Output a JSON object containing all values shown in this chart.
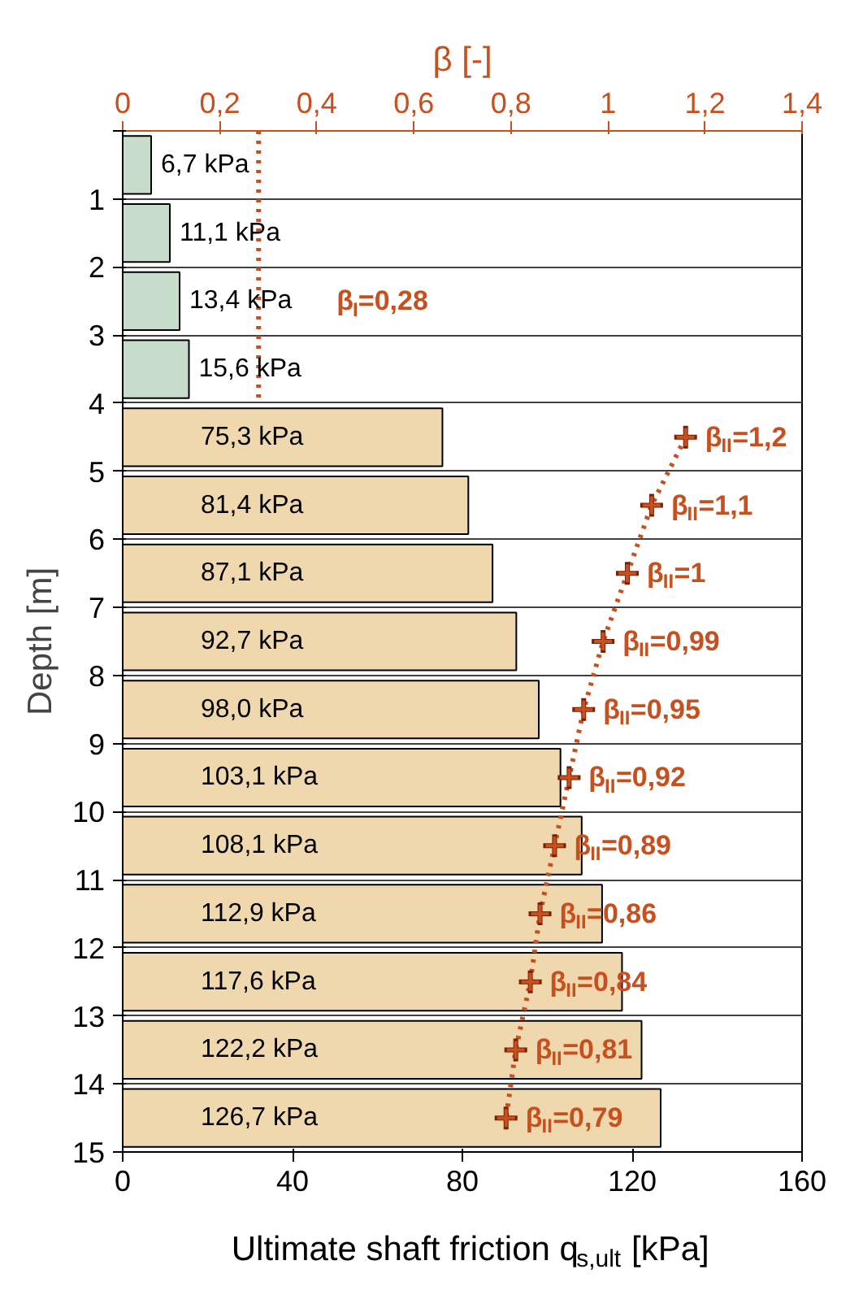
{
  "chart_data": {
    "type": "bar",
    "orientation": "horizontal",
    "x": [
      0.5,
      1.5,
      2.5,
      3.5,
      4.5,
      5.5,
      6.5,
      7.5,
      8.5,
      9.5,
      10.5,
      11.5,
      12.5,
      13.5,
      14.5
    ],
    "values": [
      6.7,
      11.1,
      13.4,
      15.6,
      75.3,
      81.4,
      87.1,
      92.7,
      98.0,
      103.1,
      108.1,
      112.9,
      117.6,
      122.2,
      126.7
    ],
    "colors": [
      "#c8dccb",
      "#c8dccb",
      "#c8dccb",
      "#c8dccb",
      "#f0d8ae",
      "#f0d8ae",
      "#f0d8ae",
      "#f0d8ae",
      "#f0d8ae",
      "#f0d8ae",
      "#f0d8ae",
      "#f0d8ae",
      "#f0d8ae",
      "#f0d8ae",
      "#f0d8ae"
    ],
    "value_labels": [
      "6,7 kPa",
      "11,1 kPa",
      "13,4 kPa",
      "15,6 kPa",
      "75,3 kPa",
      "81,4 kPa",
      "87,1 kPa",
      "92,7 kPa",
      "98,0 kPa",
      "103,1 kPa",
      "108,1 kPa",
      "112,9 kPa",
      "117,6 kPa",
      "122,2 kPa",
      "126,7 kPa"
    ],
    "xlim": [
      0,
      160
    ],
    "xticks": [
      0,
      40,
      80,
      120,
      160
    ],
    "ylim": [
      15,
      0
    ],
    "yticks": [
      {
        "value": 0,
        "label": null
      },
      1,
      2,
      3,
      4,
      5,
      6,
      7,
      8,
      9,
      10,
      11,
      12,
      13,
      14,
      15
    ],
    "x2lim": [
      0,
      1.4
    ],
    "x2ticks": [
      0,
      {
        "value": 0.2,
        "label": "0,2"
      },
      {
        "value": 0.4,
        "label": "0,4"
      },
      {
        "value": 0.6,
        "label": "0,6"
      },
      {
        "value": 0.8,
        "label": "0,8"
      },
      1,
      {
        "value": 1.2,
        "label": "1,2"
      },
      {
        "value": 1.4,
        "label": "1,4"
      }
    ],
    "xlabel": "Ultimate shaft friction q$_{s,ult}$ [kPa]",
    "x2label": "β [-]",
    "ylabel": "Depth [m]",
    "grid": "y",
    "series": [
      {
        "type": "line",
        "axis": "x2",
        "x": [
          0,
          2.5,
          4
        ],
        "values": [
          0.28,
          0.28,
          0.28
        ],
        "color": "#c8501e",
        "line_style": "dotted",
        "marker": "none",
        "value_labels": [
          null,
          "β$_{I}$=0,28",
          null
        ]
      },
      {
        "type": "line",
        "axis": "x2",
        "x": [
          4.5,
          5.5,
          6.5,
          7.5,
          8.5,
          9.5,
          10.5,
          11.5,
          12.5,
          13.5,
          14.5
        ],
        "values": [
          1.16,
          1.09,
          1.04,
          0.99,
          0.95,
          0.92,
          0.89,
          0.86,
          0.84,
          0.81,
          0.79
        ],
        "color": "#c8501e",
        "line_style": "dotted",
        "marker": "cross",
        "value_labels": [
          "β$_{II}$=1,2",
          "β$_{II}$=1,1",
          "β$_{II}$=1",
          "β$_{II}$=0,99",
          "β$_{II}$=0,95",
          "β$_{II}$=0,92",
          "β$_{II}$=0,89",
          "β$_{II}$=0,86",
          "β$_{II}$=0,84",
          "β$_{II}$=0,81",
          "β$_{II}$=0,79"
        ]
      }
    ]
  }
}
